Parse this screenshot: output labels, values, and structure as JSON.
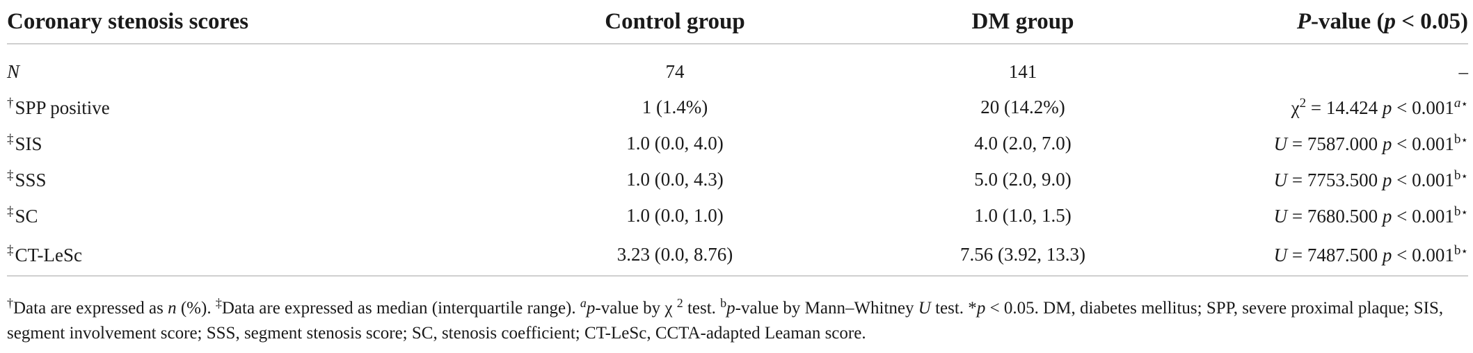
{
  "headers": {
    "col1": "Coronary stenosis scores",
    "col2": "Control group",
    "col3": "DM group",
    "col4_p": "P",
    "col4_rest": "-value (",
    "col4_p2": "p",
    "col4_tail": " < 0.05)"
  },
  "rows": [
    {
      "marker": "",
      "label": "N",
      "control": "74",
      "dm": "141",
      "pvalue": "–"
    },
    {
      "marker": "†",
      "label": "SPP positive",
      "control": "1 (1.4%)",
      "dm": "20 (14.2%)",
      "stat_prefix": "χ",
      "stat_sup": "2",
      "stat_value": " = 14.424 ",
      "p_letter": "p",
      "p_text": " < 0.001",
      "sup": "a",
      "star": "⋆"
    },
    {
      "marker": "‡",
      "label": "SIS",
      "control": "1.0 (0.0, 4.0)",
      "dm": "4.0 (2.0, 7.0)",
      "stat_prefix": "U",
      "stat_value": " = 7587.000 ",
      "p_letter": "p",
      "p_text": " < 0.001",
      "sup": "b",
      "star": "⋆"
    },
    {
      "marker": "‡",
      "label": "SSS",
      "control": "1.0 (0.0, 4.3)",
      "dm": "5.0 (2.0, 9.0)",
      "stat_prefix": "U",
      "stat_value": " = 7753.500 ",
      "p_letter": "p",
      "p_text": " < 0.001",
      "sup": "b",
      "star": "⋆"
    },
    {
      "marker": "‡",
      "label": "SC",
      "control": "1.0 (0.0, 1.0)",
      "dm": "1.0 (1.0, 1.5)",
      "stat_prefix": "U",
      "stat_value": " = 7680.500 ",
      "p_letter": "p",
      "p_text": " < 0.001",
      "sup": "b",
      "star": "⋆"
    },
    {
      "marker": "‡",
      "label": "CT-LeSc",
      "control": "3.23 (0.0, 8.76)",
      "dm": "7.56 (3.92, 13.3)",
      "stat_prefix": "U",
      "stat_value": " = 7487.500 ",
      "p_letter": "p",
      "p_text": " < 0.001",
      "sup": "b",
      "star": "⋆"
    }
  ],
  "footnote": {
    "dagger": "†",
    "t1": "Data are expressed as ",
    "n": "n",
    "t2": " (%). ",
    "ddagger": "‡",
    "t3": "Data are expressed as median (interquartile range). ",
    "a": "a",
    "p1": "p",
    "t4": "-value by χ ",
    "two": "2",
    "t5": " test. ",
    "b": "b",
    "p2": "p",
    "t6": "-value by Mann–Whitney ",
    "u": "U",
    "t7": " test. *",
    "p3": "p",
    "t8": " < 0.05. DM, diabetes mellitus; SPP, severe proximal plaque; SIS, segment involvement score; SSS, segment stenosis score; SC, stenosis coefficient; CT-LeSc, CCTA-adapted Leaman score."
  }
}
